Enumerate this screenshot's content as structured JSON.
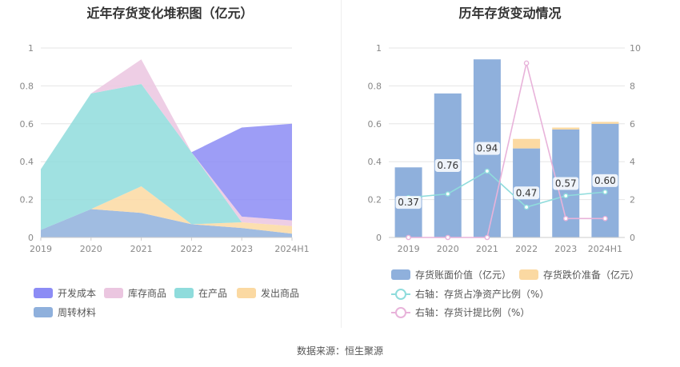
{
  "chart_data": [
    {
      "type": "area",
      "stacked": true,
      "title": "近年存货变化堆积图（亿元）",
      "categories": [
        "2019",
        "2020",
        "2021",
        "2022",
        "2023",
        "2024H1"
      ],
      "ylim": [
        0,
        1
      ],
      "yticks": [
        "0",
        "0.2",
        "0.4",
        "0.6",
        "0.8",
        "1"
      ],
      "grid": true,
      "legend_position": "bottom",
      "series": [
        {
          "name": "周转材料",
          "color": "#8fb0dc",
          "values": [
            0.04,
            0.15,
            0.13,
            0.07,
            0.05,
            0.02
          ]
        },
        {
          "name": "发出商品",
          "color": "#fbd9a2",
          "values": [
            0.0,
            0.0,
            0.14,
            0.0,
            0.03,
            0.04
          ]
        },
        {
          "name": "在产品",
          "color": "#8fdcdc",
          "values": [
            0.32,
            0.61,
            0.54,
            0.38,
            0.0,
            0.0
          ]
        },
        {
          "name": "库存商品",
          "color": "#ebc6e0",
          "values": [
            0.0,
            0.0,
            0.13,
            0.0,
            0.03,
            0.03
          ]
        },
        {
          "name": "开发成本",
          "color": "#8c8cf5",
          "values": [
            0.0,
            0.0,
            0.0,
            0.0,
            0.47,
            0.51
          ]
        }
      ],
      "legend_order": [
        "开发成本",
        "库存商品",
        "在产品",
        "发出商品",
        "周转材料"
      ]
    },
    {
      "type": "bar",
      "title": "历年存货变动情况",
      "categories": [
        "2019",
        "2020",
        "2021",
        "2022",
        "2023",
        "2024H1"
      ],
      "ylim": [
        0,
        1
      ],
      "yticks_left": [
        "0",
        "0.2",
        "0.4",
        "0.6",
        "0.8",
        "1"
      ],
      "ylim_right": [
        0,
        10
      ],
      "yticks_right": [
        "0",
        "2",
        "4",
        "6",
        "8",
        "10"
      ],
      "grid": true,
      "legend_position": "bottom",
      "series": [
        {
          "name": "存货账面价值（亿元）",
          "color": "#8fb0dc",
          "type": "bar",
          "axis": "left",
          "values": [
            0.37,
            0.76,
            0.94,
            0.47,
            0.57,
            0.6
          ],
          "labels": [
            "0.37",
            "0.76",
            "0.94",
            "0.47",
            "0.57",
            "0.60"
          ]
        },
        {
          "name": "存货跌价准备（亿元）",
          "color": "#fbd9a2",
          "type": "bar",
          "axis": "left",
          "values": [
            0,
            0,
            0,
            0.05,
            0.01,
            0.01
          ]
        },
        {
          "name": "右轴：存货占净资产比例（%）",
          "color": "#8fdcdc",
          "type": "line",
          "axis": "right",
          "values": [
            2.1,
            2.3,
            3.5,
            1.6,
            2.2,
            2.4
          ]
        },
        {
          "name": "右轴：存货计提比例（%）",
          "color": "#e8b3da",
          "type": "line",
          "axis": "right",
          "values": [
            0,
            0,
            0,
            9.2,
            1.0,
            1.0
          ]
        }
      ]
    }
  ],
  "source": "数据来源：恒生聚源"
}
